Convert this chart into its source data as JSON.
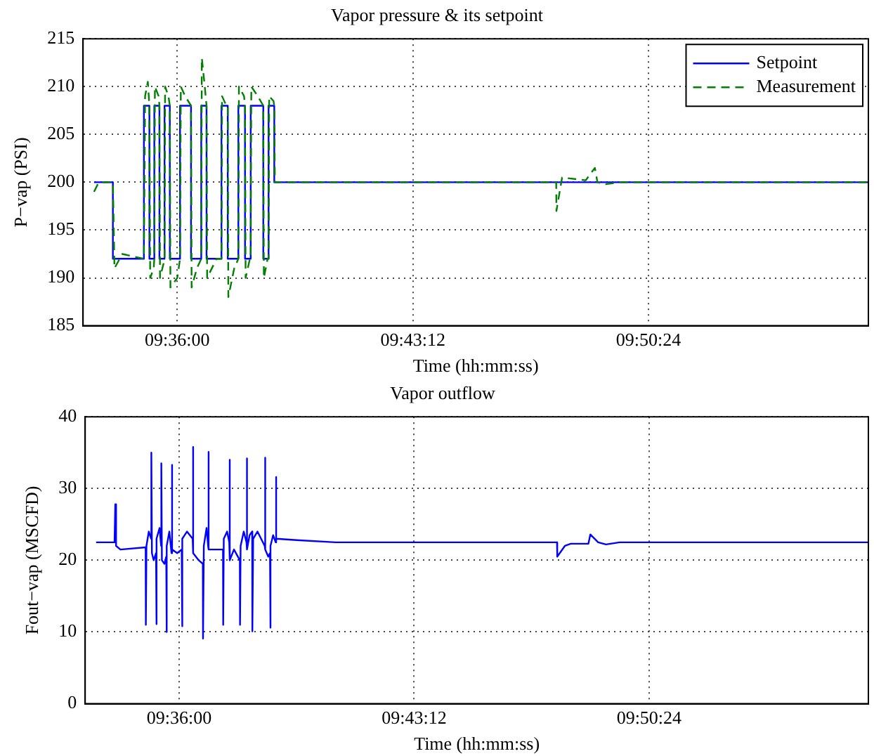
{
  "chart_data": [
    {
      "type": "line",
      "title": "Vapor pressure & its setpoint",
      "xlabel": "Time (hh:mm:ss)",
      "ylabel": "P−vap (PSI)",
      "xlim": [
        9.552,
        9.952
      ],
      "xticks": [
        {
          "value": 9.6,
          "label": "09:36:00"
        },
        {
          "value": 9.72,
          "label": "09:43:12"
        },
        {
          "value": 9.84,
          "label": "09:50:24"
        }
      ],
      "ylim": [
        185,
        215
      ],
      "yticks": [
        185,
        190,
        195,
        200,
        205,
        210,
        215
      ],
      "grid": true,
      "legend": "top right",
      "series": [
        {
          "name": "Setpoint",
          "type": "step",
          "color": "#0000ff",
          "line_style": "solid",
          "x": [
            9.5576,
            9.5672,
            9.583,
            9.5858,
            9.5883,
            9.5909,
            9.5935,
            9.5962,
            9.6014,
            9.607,
            9.6122,
            9.6149,
            9.6225,
            9.6257,
            9.6311,
            9.6345,
            9.6374,
            9.6438,
            9.6465,
            9.6494,
            9.952
          ],
          "values": [
            200,
            192,
            208,
            192,
            208,
            192,
            208,
            192,
            208,
            192,
            208,
            192,
            208,
            192,
            208,
            192,
            208,
            192,
            208,
            200,
            200
          ]
        },
        {
          "name": "Measurement",
          "color": "#008000",
          "line_style": "dashed",
          "x": [
            9.5576,
            9.56,
            9.5672,
            9.568,
            9.572,
            9.583,
            9.5836,
            9.585,
            9.5858,
            9.5862,
            9.588,
            9.5883,
            9.5886,
            9.5905,
            9.5909,
            9.5912,
            9.593,
            9.5935,
            9.5938,
            9.5955,
            9.5962,
            9.5965,
            9.6,
            9.6014,
            9.6018,
            9.604,
            9.607,
            9.6073,
            9.61,
            9.6122,
            9.6125,
            9.614,
            9.6149,
            9.6152,
            9.62,
            9.6225,
            9.6228,
            9.625,
            9.6257,
            9.626,
            9.629,
            9.6311,
            9.6314,
            9.634,
            9.6345,
            9.6348,
            9.637,
            9.6374,
            9.6377,
            9.641,
            9.6438,
            9.6441,
            9.646,
            9.6465,
            9.6468,
            9.649,
            9.6494,
            9.6497,
            9.793,
            9.7931,
            9.796,
            9.808,
            9.8127,
            9.814,
            9.8182,
            9.825,
            9.952
          ],
          "values": [
            199,
            200,
            200,
            191,
            192.5,
            192,
            209,
            210.5,
            208,
            190,
            191,
            192,
            210,
            209,
            208,
            190,
            191.5,
            192,
            210,
            209,
            208,
            189,
            190,
            192,
            210,
            209,
            208,
            189,
            191,
            192,
            213,
            210,
            208,
            190,
            192,
            192,
            209,
            208,
            208,
            188,
            191,
            192,
            210,
            209,
            208,
            190,
            192,
            192,
            210,
            209,
            208,
            190,
            192,
            192,
            209,
            208.5,
            208,
            200,
            200,
            197,
            200.5,
            200.2,
            201.5,
            200,
            199.8,
            200,
            200
          ]
        }
      ]
    },
    {
      "type": "line",
      "title": "Vapor outflow",
      "xlabel": "Time (hh:mm:ss)",
      "ylabel": "Fout−vap (MSCFD)",
      "xlim": [
        9.552,
        9.952
      ],
      "xticks": [
        {
          "value": 9.6,
          "label": "09:36:00"
        },
        {
          "value": 9.72,
          "label": "09:43:12"
        },
        {
          "value": 9.84,
          "label": "09:50:24"
        }
      ],
      "ylim": [
        0,
        40
      ],
      "yticks": [
        0,
        10,
        20,
        30,
        40
      ],
      "grid": true,
      "series": [
        {
          "color": "#0000ff",
          "x": [
            9.5576,
            9.567,
            9.5674,
            9.5678,
            9.57,
            9.5829,
            9.583,
            9.5833,
            9.5845,
            9.5857,
            9.5858,
            9.5861,
            9.587,
            9.5882,
            9.5883,
            9.5886,
            9.59,
            9.5908,
            9.5909,
            9.5912,
            9.5925,
            9.5934,
            9.5935,
            9.5938,
            9.595,
            9.5961,
            9.5962,
            9.5966,
            9.599,
            9.6013,
            9.6014,
            9.6018,
            9.604,
            9.6069,
            9.607,
            9.6073,
            9.61,
            9.6121,
            9.6122,
            9.6126,
            9.614,
            9.6148,
            9.6149,
            9.6152,
            9.62,
            9.6224,
            9.6225,
            9.6228,
            9.6245,
            9.6256,
            9.6257,
            9.626,
            9.628,
            9.631,
            9.6311,
            9.6314,
            9.633,
            9.6344,
            9.6345,
            9.6348,
            9.636,
            9.6373,
            9.6374,
            9.6378,
            9.64,
            9.6437,
            9.6438,
            9.6441,
            9.6455,
            9.6464,
            9.6465,
            9.6468,
            9.648,
            9.6493,
            9.6494,
            9.6497,
            9.66,
            9.68,
            9.793,
            9.7931,
            9.797,
            9.8,
            9.809,
            9.81,
            9.814,
            9.818,
            9.825,
            9.952
          ],
          "values": [
            22.5,
            22.5,
            27.8,
            22,
            21.5,
            21.8,
            11,
            22,
            24,
            23,
            35,
            21,
            20,
            21,
            11.1,
            23,
            24.5,
            22,
            33.5,
            20,
            19.5,
            20.5,
            10,
            22,
            24,
            21,
            33.3,
            21.5,
            21,
            21.5,
            10.8,
            23,
            24,
            23,
            35.8,
            21,
            20,
            19.5,
            9.1,
            22,
            24.5,
            22,
            35.1,
            21.5,
            21.5,
            21.5,
            11,
            23,
            24,
            22.5,
            34,
            20,
            21.5,
            20,
            11,
            22,
            24,
            22.5,
            34.2,
            21.5,
            23.5,
            24,
            10.1,
            23,
            24,
            22,
            34.3,
            21.5,
            20.5,
            21,
            10.6,
            22,
            23.5,
            22.5,
            31.6,
            23,
            22.8,
            22.5,
            22.5,
            20.5,
            22,
            22.3,
            22.3,
            23.6,
            22.5,
            22.2,
            22.5,
            22.5
          ]
        }
      ]
    }
  ]
}
